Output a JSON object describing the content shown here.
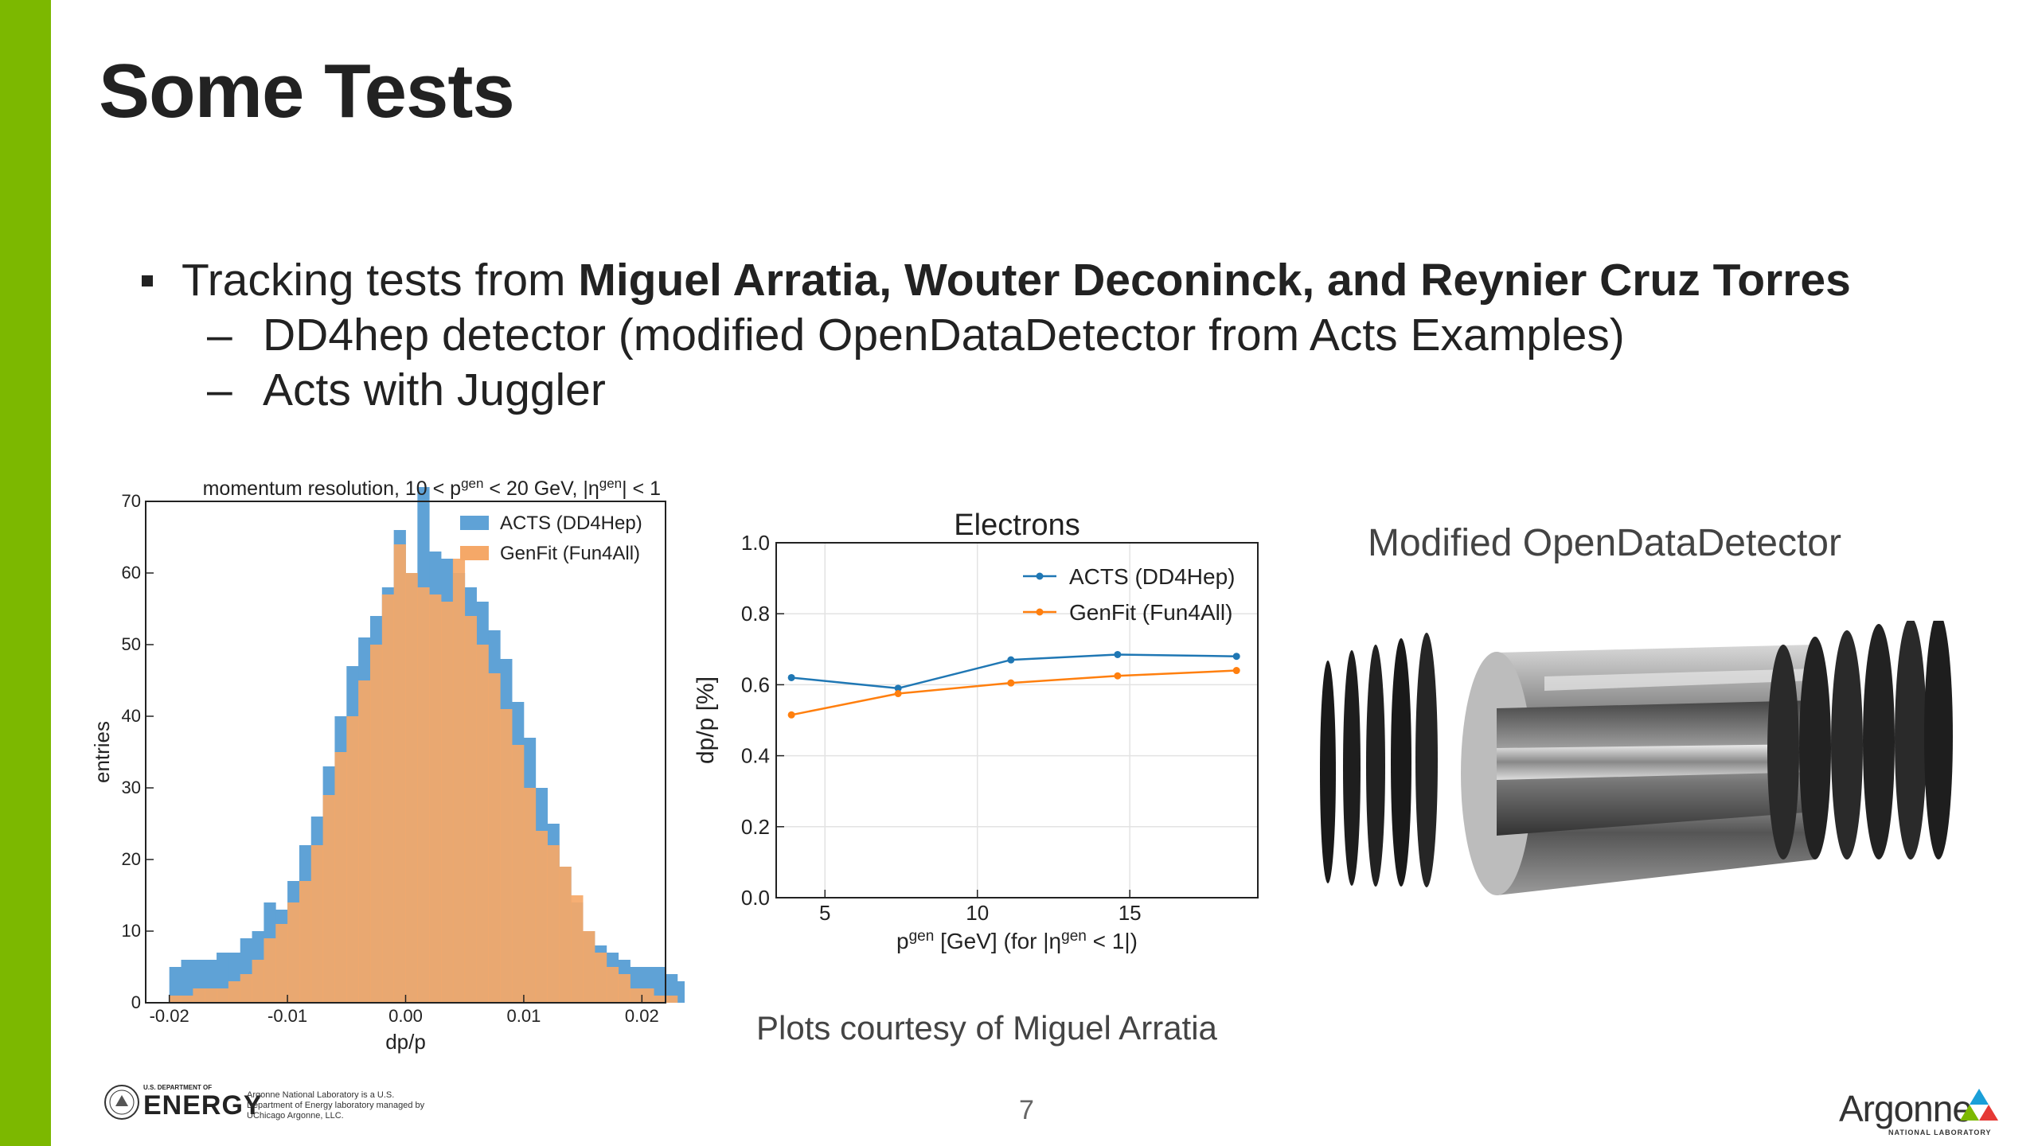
{
  "slide": {
    "title": "Some Tests",
    "bullet1_prefix": "Tracking tests from ",
    "bullet1_bold": "Miguel Arratia, Wouter Deconinck, and Reynier Cruz Torres",
    "sub1": "DD4hep detector (modified OpenDataDetector from Acts Examples)",
    "sub2": "Acts with Juggler",
    "dash": "–",
    "detector_title": "Modified OpenDataDetector",
    "credit": "Plots courtesy of Miguel Arratia",
    "page_number": "7"
  },
  "footer": {
    "doe_small": "U.S. DEPARTMENT OF",
    "doe_big": "ENERGY",
    "doe_desc": "Argonne National Laboratory is a U.S. Department of Energy laboratory managed by UChicago Argonne, LLC.",
    "argonne": "Argonne",
    "argonne_sub": "NATIONAL LABORATORY"
  },
  "colors": {
    "sidebar": "#7cb800",
    "acts": "#1f77b4",
    "genfit": "#ff7f0e",
    "hist_acts": "#5fa2d6",
    "hist_genfit": "#f5a868"
  },
  "chart_data": [
    {
      "type": "bar",
      "title": "momentum resolution, 10 < p^gen < 20 GeV, |η^gen| < 1",
      "title_parts": [
        "momentum resolution, 10 < p",
        "gen",
        " < 20 GeV, |η",
        "gen",
        "| < 1"
      ],
      "xlabel": "dp/p",
      "ylabel": "entries",
      "xlim": [
        -0.022,
        0.022
      ],
      "ylim": [
        0,
        70
      ],
      "xticks": [
        "-0.02",
        "-0.01",
        "0.00",
        "0.01",
        "0.02"
      ],
      "xtick_values": [
        -0.02,
        -0.01,
        0.0,
        0.01,
        0.02
      ],
      "yticks": [
        "0",
        "10",
        "20",
        "30",
        "40",
        "50",
        "60",
        "70"
      ],
      "ytick_values": [
        0,
        10,
        20,
        30,
        40,
        50,
        60,
        70
      ],
      "legend_position": "top-right",
      "bin_edges_start": -0.02,
      "bin_width": 0.001,
      "series": [
        {
          "name": "ACTS (DD4Hep)",
          "values": [
            5,
            6,
            6,
            6,
            7,
            7,
            9,
            10,
            14,
            13,
            17,
            22,
            26,
            33,
            40,
            47,
            51,
            54,
            58,
            66,
            60,
            72,
            63,
            62,
            60,
            58,
            56,
            52,
            48,
            42,
            37,
            30,
            25,
            19,
            14,
            10,
            8,
            7,
            6,
            5,
            5,
            5,
            4,
            3
          ]
        },
        {
          "name": "GenFit (Fun4All)",
          "values": [
            1,
            1,
            2,
            2,
            2,
            3,
            4,
            6,
            9,
            11,
            14,
            17,
            22,
            29,
            35,
            40,
            45,
            50,
            57,
            64,
            60,
            58,
            57,
            56,
            62,
            54,
            50,
            46,
            41,
            36,
            30,
            24,
            22,
            19,
            15,
            10,
            7,
            5,
            4,
            2,
            2,
            1,
            1,
            0
          ]
        }
      ]
    },
    {
      "type": "line",
      "title": "Electrons",
      "xlabel_parts": [
        "p",
        "gen",
        " [GeV] (for |η",
        "gen",
        " < 1|)"
      ],
      "xlabel": "p^gen [GeV] (for |η^gen < 1|)",
      "ylabel": "dp/p [%]",
      "xlim": [
        3.4,
        19.2
      ],
      "ylim": [
        0.0,
        1.0
      ],
      "xticks": [
        "5",
        "10",
        "15"
      ],
      "xtick_values": [
        5,
        10,
        15
      ],
      "yticks": [
        "0.0",
        "0.2",
        "0.4",
        "0.6",
        "0.8",
        "1.0"
      ],
      "ytick_values": [
        0.0,
        0.2,
        0.4,
        0.6,
        0.8,
        1.0
      ],
      "legend_position": "top-right",
      "grid": true,
      "series": [
        {
          "name": "ACTS (DD4Hep)",
          "x": [
            3.9,
            7.4,
            11.1,
            14.6,
            18.5
          ],
          "values": [
            0.62,
            0.59,
            0.67,
            0.685,
            0.68
          ]
        },
        {
          "name": "GenFit (Fun4All)",
          "x": [
            3.9,
            7.4,
            11.1,
            14.6,
            18.5
          ],
          "values": [
            0.515,
            0.575,
            0.605,
            0.625,
            0.64
          ]
        }
      ]
    }
  ]
}
